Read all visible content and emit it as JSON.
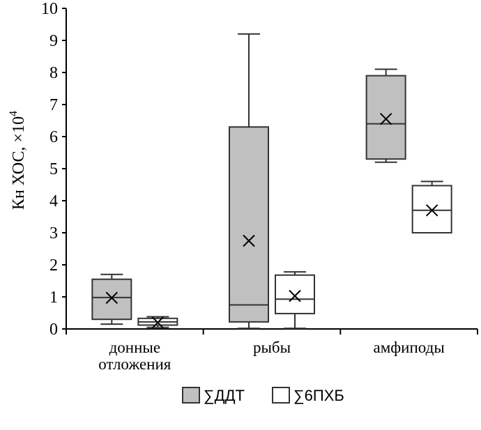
{
  "chart_data": {
    "type": "box",
    "ylabel": "Кн ХОС, ×10",
    "ylabel_exponent": "4",
    "ylim": [
      0,
      10
    ],
    "y_ticks": [
      "0",
      "1",
      "2",
      "3",
      "4",
      "5",
      "6",
      "7",
      "8",
      "9",
      "10"
    ],
    "categories": [
      {
        "line1": "донные",
        "line2": "отложения"
      },
      {
        "line1": "рыбы",
        "line2": ""
      },
      {
        "line1": "амфиподы",
        "line2": ""
      }
    ],
    "series": [
      {
        "name": "∑ДДТ",
        "color": "#c0c0c0",
        "boxes": [
          {
            "min": 0.15,
            "q1": 0.3,
            "median": 0.98,
            "q3": 1.55,
            "max": 1.7,
            "mean": 0.97
          },
          {
            "min": 0.02,
            "q1": 0.22,
            "median": 0.75,
            "q3": 6.3,
            "max": 9.2,
            "mean": 2.75
          },
          {
            "min": 5.2,
            "q1": 5.3,
            "median": 6.4,
            "q3": 7.9,
            "max": 8.1,
            "mean": 6.55
          }
        ]
      },
      {
        "name": "∑6ПХБ",
        "color": "#ffffff",
        "boxes": [
          {
            "min": 0.05,
            "q1": 0.12,
            "median": 0.22,
            "q3": 0.33,
            "max": 0.38,
            "mean": 0.2
          },
          {
            "min": 0.02,
            "q1": 0.48,
            "median": 0.93,
            "q3": 1.68,
            "max": 1.78,
            "mean": 1.03
          },
          {
            "min": 3.0,
            "q1": 3.0,
            "median": 3.7,
            "q3": 4.47,
            "max": 4.6,
            "mean": 3.7
          }
        ]
      }
    ],
    "legend": {
      "position": "bottom"
    },
    "grid": false
  }
}
